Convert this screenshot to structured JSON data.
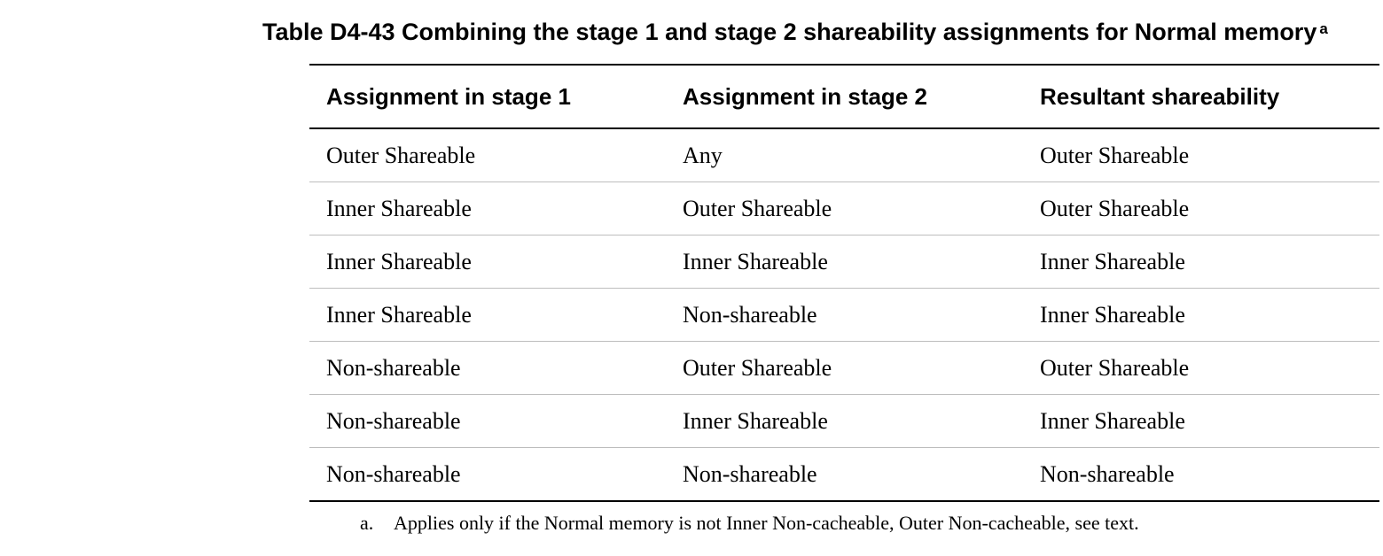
{
  "table": {
    "caption": "Table D4-43 Combining the stage 1 and stage 2 shareability assignments for Normal memory",
    "caption_note_marker": "a",
    "headers": [
      "Assignment in stage 1",
      "Assignment in stage 2",
      "Resultant shareability"
    ],
    "rows": [
      [
        "Outer Shareable",
        "Any",
        "Outer Shareable"
      ],
      [
        "Inner Shareable",
        "Outer Shareable",
        "Outer Shareable"
      ],
      [
        "Inner Shareable",
        "Inner Shareable",
        "Inner Shareable"
      ],
      [
        "Inner Shareable",
        "Non-shareable",
        "Inner Shareable"
      ],
      [
        "Non-shareable",
        "Outer Shareable",
        "Outer Shareable"
      ],
      [
        "Non-shareable",
        "Inner Shareable",
        "Inner Shareable"
      ],
      [
        "Non-shareable",
        "Non-shareable",
        "Non-shareable"
      ]
    ]
  },
  "footnote": {
    "marker": "a.",
    "text": "Applies only if the Normal memory is not Inner Non-cacheable, Outer Non-cacheable, see text."
  }
}
